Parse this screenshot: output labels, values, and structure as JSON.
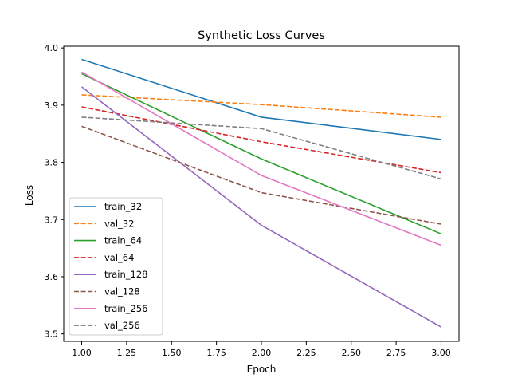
{
  "chart_data": {
    "type": "line",
    "title": "Synthetic Loss Curves",
    "xlabel": "Epoch",
    "ylabel": "Loss",
    "xlim": [
      0.9,
      3.1
    ],
    "ylim": [
      3.487,
      4.003
    ],
    "xticks": [
      1.0,
      1.25,
      1.5,
      1.75,
      2.0,
      2.25,
      2.5,
      2.75,
      3.0
    ],
    "xtick_labels": [
      "1.00",
      "1.25",
      "1.50",
      "1.75",
      "2.00",
      "2.25",
      "2.50",
      "2.75",
      "3.00"
    ],
    "yticks": [
      3.5,
      3.6,
      3.7,
      3.8,
      3.9,
      4.0
    ],
    "ytick_labels": [
      "3.5",
      "3.6",
      "3.7",
      "3.8",
      "3.9",
      "4.0"
    ],
    "grid": false,
    "legend_position": "lower-left",
    "x": [
      1,
      2,
      3
    ],
    "series": [
      {
        "name": "train_32",
        "values": [
          3.98,
          3.879,
          3.84
        ],
        "color": "#1f77b4",
        "dashed": false
      },
      {
        "name": "val_32",
        "values": [
          3.918,
          3.901,
          3.879
        ],
        "color": "#ff7f0e",
        "dashed": true
      },
      {
        "name": "train_64",
        "values": [
          3.955,
          3.806,
          3.675
        ],
        "color": "#2ca02c",
        "dashed": false
      },
      {
        "name": "val_64",
        "values": [
          3.897,
          3.836,
          3.782
        ],
        "color": "#d62728",
        "dashed": true
      },
      {
        "name": "train_128",
        "values": [
          3.932,
          3.69,
          3.512
        ],
        "color": "#9467bd",
        "dashed": false
      },
      {
        "name": "val_128",
        "values": [
          3.863,
          3.747,
          3.692
        ],
        "color": "#8c564b",
        "dashed": true
      },
      {
        "name": "train_256",
        "values": [
          3.958,
          3.777,
          3.655
        ],
        "color": "#e377c2",
        "dashed": false
      },
      {
        "name": "val_256",
        "values": [
          3.879,
          3.859,
          3.771
        ],
        "color": "#7f7f7f",
        "dashed": true
      }
    ]
  }
}
